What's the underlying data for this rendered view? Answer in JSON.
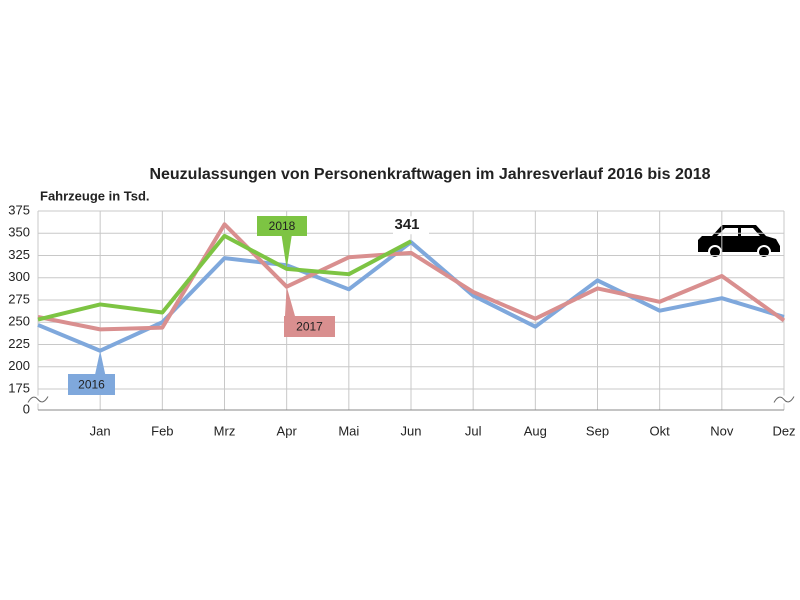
{
  "chart_data": {
    "type": "line",
    "title": "Neuzulassungen von Personenkraftwagen im Jahresverlauf 2016 bis 2018",
    "y_label": "Fahrzeuge in Tsd.",
    "categories": [
      null,
      "Jan",
      "Feb",
      "Mrz",
      "Apr",
      "Mai",
      "Jun",
      "Jul",
      "Aug",
      "Sep",
      "Okt",
      "Nov",
      "Dez"
    ],
    "series": [
      {
        "name": "2016",
        "color": "#7fa8dc",
        "values": [
          247,
          218,
          250,
          322,
          314,
          287,
          340,
          280,
          245,
          297,
          263,
          277,
          256
        ]
      },
      {
        "name": "2017",
        "color": "#d98f8f",
        "values": [
          256,
          242,
          244,
          360,
          290,
          323,
          328,
          284,
          254,
          288,
          273,
          302,
          252
        ]
      },
      {
        "name": "2018",
        "color": "#7dc443",
        "values": [
          253,
          270,
          261,
          347,
          310,
          304,
          341,
          null,
          null,
          null,
          null,
          null,
          null
        ]
      }
    ],
    "annotations": [
      {
        "text": "341",
        "category": "Jun",
        "value": 341
      }
    ],
    "ylim": [
      0,
      375
    ],
    "yticks": [
      0,
      175,
      200,
      225,
      250,
      275,
      300,
      325,
      350,
      375
    ],
    "axis_break": true,
    "grid": true
  }
}
